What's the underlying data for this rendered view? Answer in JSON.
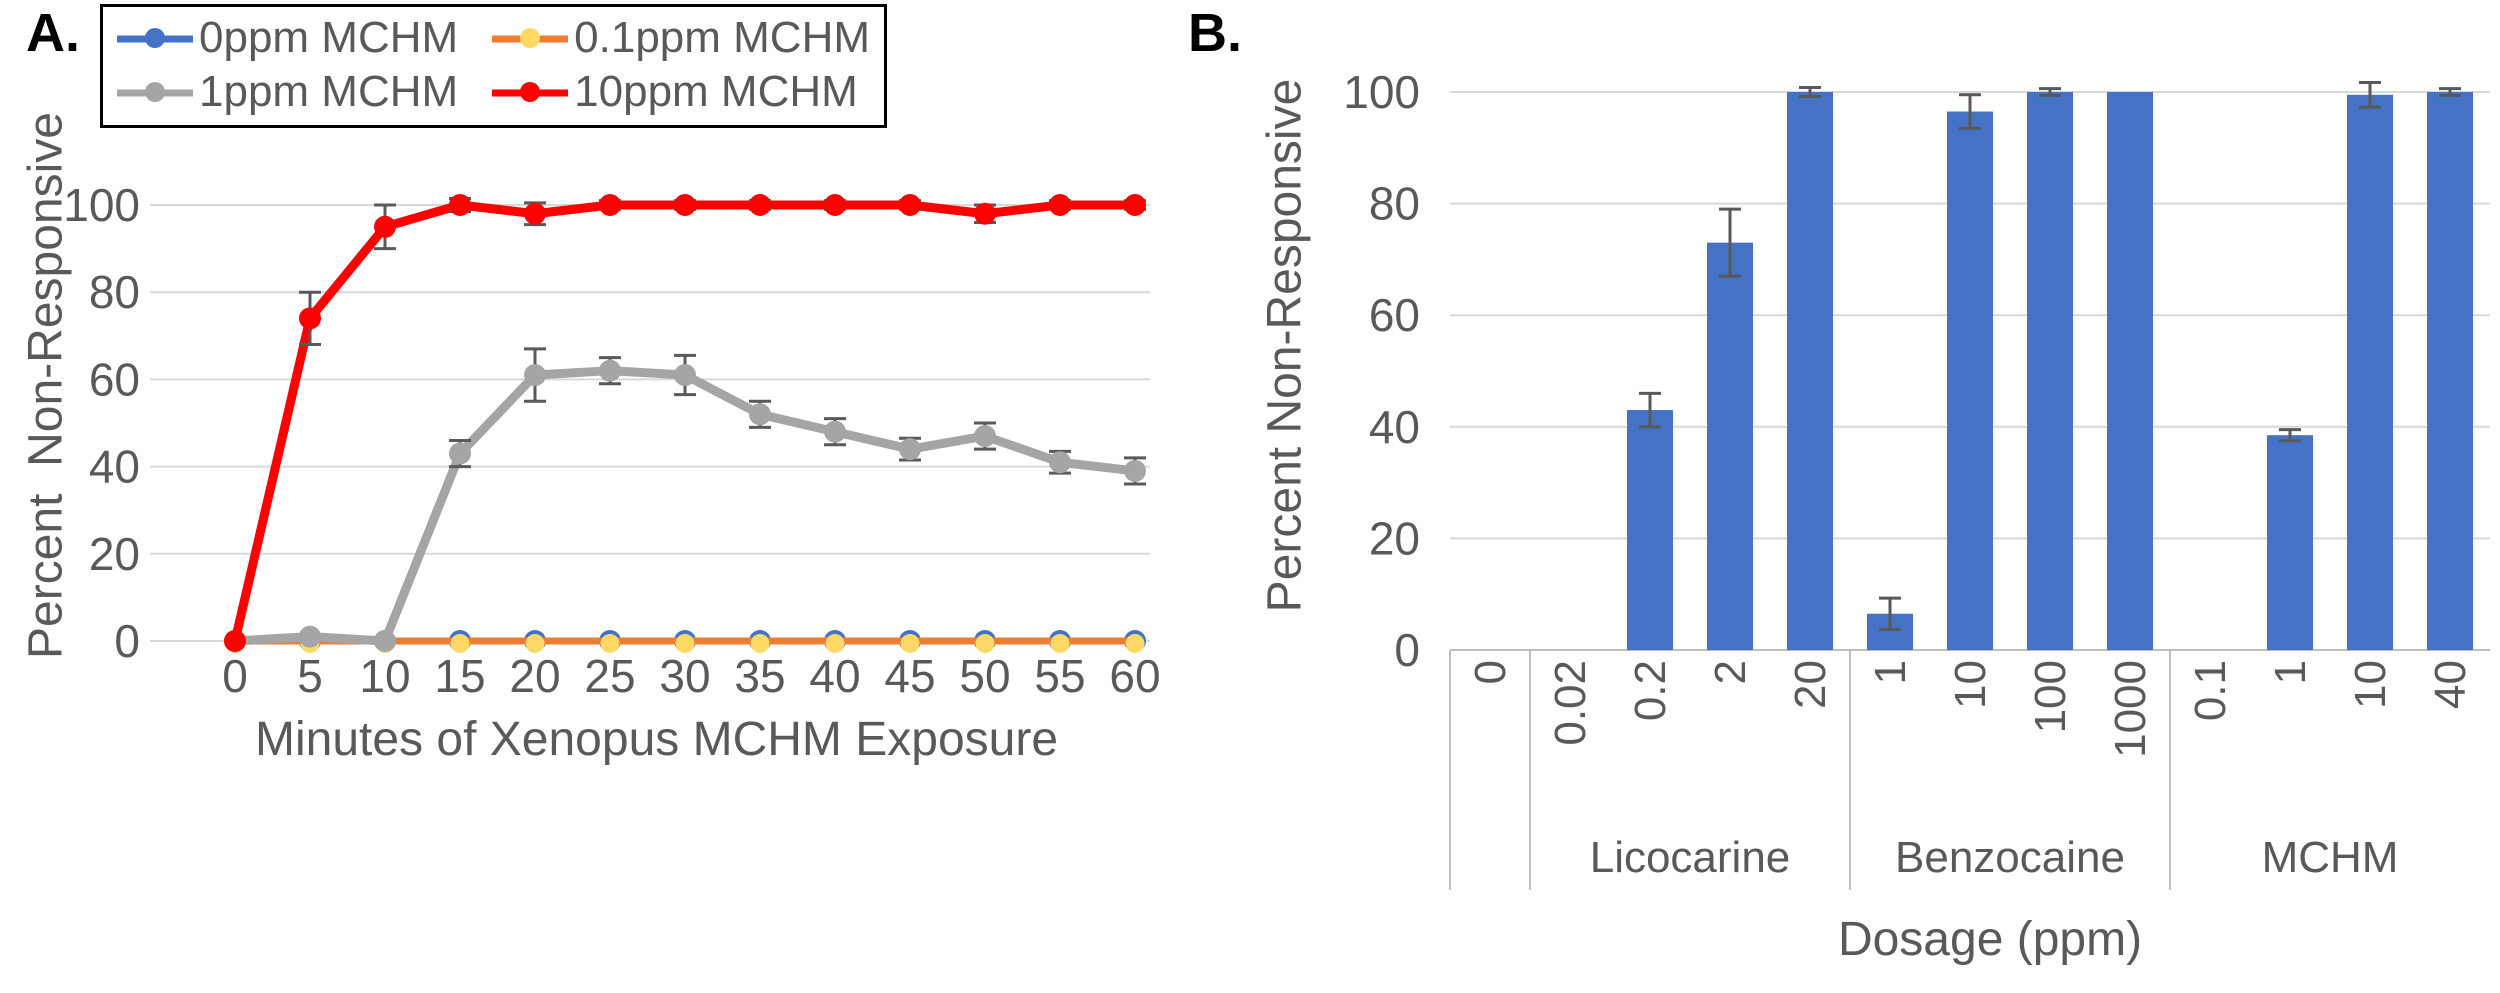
{
  "panel_a": {
    "label": "A.",
    "y_title": "Percent  Non-Responsive",
    "x_title": "Minutes of Xenopus MCHM Exposure"
  },
  "panel_b": {
    "label": "B.",
    "y_title": "Percent Non-Responsive",
    "x_title": "Dosage (ppm)"
  },
  "colors": {
    "gridline": "#D9D9D9",
    "axis_band": "#BFBFBF",
    "error_bar": "#595959",
    "text": "#595959",
    "bar": "#4472C4"
  },
  "chart_data": [
    {
      "type": "line",
      "title": "",
      "xlabel": "Minutes of Xenopus MCHM Exposure",
      "ylabel": "Percent Non-Responsive",
      "x": [
        0,
        5,
        10,
        15,
        20,
        25,
        30,
        35,
        40,
        45,
        50,
        55,
        60
      ],
      "ylim": [
        0,
        100
      ],
      "y_ticks": [
        0,
        20,
        40,
        60,
        80,
        100
      ],
      "grid": true,
      "legend_position": "top-left",
      "series": [
        {
          "name": "0ppm MCHM",
          "color": "#4472C4",
          "marker_color": "#4472C4",
          "marker_r": 11,
          "marker_dy": 0,
          "width": 7,
          "values": [
            0,
            0,
            0,
            0,
            0,
            0,
            0,
            0,
            0,
            0,
            0,
            0,
            0
          ],
          "errors": [
            0,
            0,
            0,
            0,
            0,
            0,
            0,
            0,
            0,
            0,
            0,
            0,
            0
          ]
        },
        {
          "name": "0.1ppm MCHM",
          "color": "#ED7D31",
          "marker_color": "#FFD966",
          "marker_r": 9.5,
          "marker_dy": 2.5,
          "width": 7,
          "values": [
            0,
            0,
            0,
            0,
            0,
            0,
            0,
            0,
            0,
            0,
            0,
            0,
            0
          ],
          "errors": [
            0,
            0,
            0,
            0,
            0,
            0,
            0,
            0,
            0,
            0,
            0,
            0,
            0
          ]
        },
        {
          "name": "1ppm MCHM",
          "color": "#A5A5A5",
          "marker_color": "#A5A5A5",
          "marker_r": 11,
          "marker_dy": 0,
          "width": 9,
          "values": [
            0,
            1,
            0,
            43,
            61,
            62,
            61,
            52,
            48,
            44,
            47,
            41,
            39
          ],
          "errors": [
            0,
            0,
            0,
            3,
            6,
            3,
            4.5,
            3,
            3,
            2.5,
            3,
            2.5,
            3
          ]
        },
        {
          "name": "10ppm MCHM",
          "color": "#FF0000",
          "marker_color": "#FF0000",
          "marker_r": 11,
          "marker_dy": 0,
          "width": 9,
          "values": [
            0,
            74,
            95,
            100,
            98,
            100,
            100,
            100,
            100,
            100,
            98,
            100,
            100
          ],
          "errors": [
            0,
            6,
            5,
            1.5,
            2.5,
            1,
            1,
            1,
            1,
            1,
            2,
            1,
            1
          ]
        }
      ]
    },
    {
      "type": "bar",
      "title": "",
      "xlabel": "Dosage (ppm)",
      "ylabel": "Percent Non-Responsive",
      "bar_color": "#4472C4",
      "ylim": [
        0,
        100
      ],
      "y_ticks": [
        0,
        20,
        40,
        60,
        80,
        100
      ],
      "grid": true,
      "categories": [
        "0",
        "0.02",
        "0.2",
        "2",
        "20",
        "1",
        "10",
        "100",
        "1000",
        "0.1",
        "1",
        "10",
        "40"
      ],
      "values": [
        0,
        0,
        43,
        73,
        100,
        6.5,
        96.5,
        100,
        100,
        0,
        38.5,
        99.5,
        100
      ],
      "errors": [
        0,
        0,
        3,
        6,
        0.8,
        2.8,
        3,
        0.6,
        0,
        0,
        1,
        2.2,
        0.6
      ],
      "groups": [
        {
          "label": "",
          "start": 0,
          "end": 0
        },
        {
          "label": "Licocarine",
          "start": 1,
          "end": 4
        },
        {
          "label": "Benzocaine",
          "start": 5,
          "end": 8
        },
        {
          "label": "MCHM",
          "start": 9,
          "end": 12
        }
      ]
    }
  ]
}
